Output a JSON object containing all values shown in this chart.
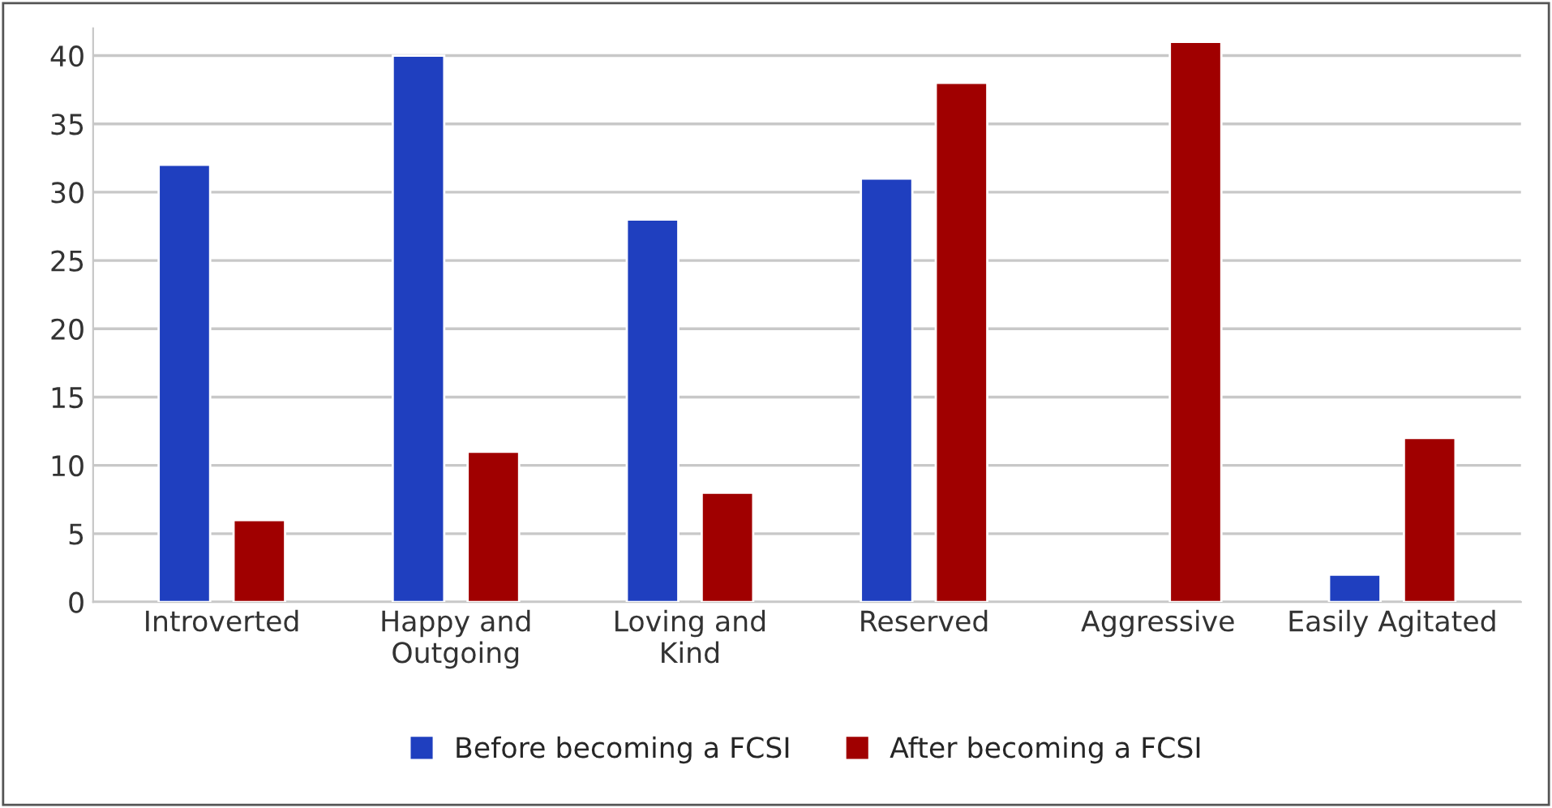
{
  "chart_data": {
    "type": "bar",
    "categories": [
      "Introverted",
      "Happy and\nOutgoing",
      "Loving and\nKind",
      "Reserved",
      "Aggressive",
      "Easily Agitated"
    ],
    "series": [
      {
        "name": "Before becoming a FCSI",
        "color": "#1f3fbf",
        "values": [
          32,
          40,
          28,
          31,
          null,
          2
        ]
      },
      {
        "name": "After becoming a FCSI",
        "color": "#a00000",
        "values": [
          6,
          11,
          8,
          38,
          41,
          12
        ]
      }
    ],
    "ylim": [
      0,
      42
    ],
    "yticks": [
      0,
      5,
      10,
      15,
      20,
      25,
      30,
      35,
      40
    ],
    "grid": "y",
    "legend": "bottom"
  }
}
